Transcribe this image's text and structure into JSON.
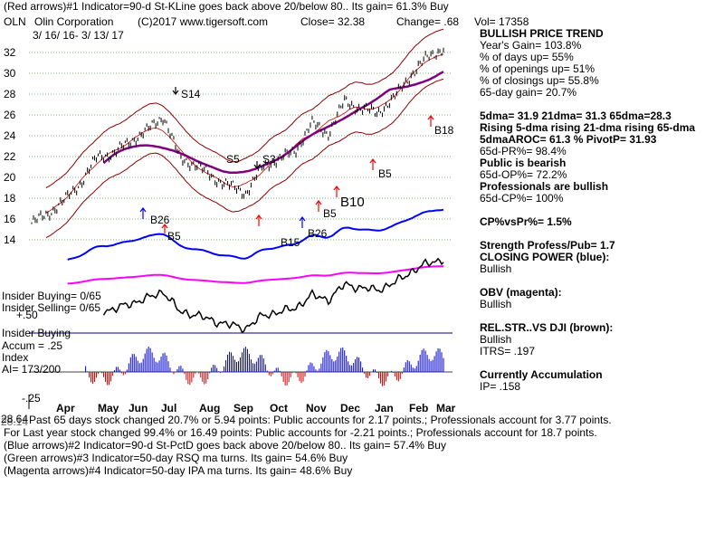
{
  "header": {
    "line1": "(Red arrows)#1 Indicator=90-d St-KLine goes back above 20/below 80..  Its gain= 61.3% Buy",
    "symbol": "OLN",
    "company": "Olin Corporation",
    "copyright": "(C)2017 www.tigersoft.com",
    "close": "Close=  32.38",
    "change": "Change= .68",
    "vol": "Vol= 17358",
    "date_range": "3/ 16/ 16- 3/ 13/ 17"
  },
  "chart_data": {
    "type": "line",
    "ylim": [
      14,
      33
    ],
    "y_ticks": [
      "32",
      "30",
      "28",
      "26",
      "24",
      "22",
      "20",
      "18",
      "16",
      "14"
    ],
    "y_tick_values": [
      32,
      30,
      28,
      26,
      24,
      22,
      20,
      18,
      16,
      14
    ],
    "x_ticks": [
      "Apr",
      "May",
      "Jun",
      "Jul",
      "Aug",
      "Sep",
      "Oct",
      "Nov",
      "Dec",
      "Jan",
      "Feb",
      "Mar"
    ],
    "series": [
      {
        "name": "",
        "values": [
          15.6,
          16.5,
          17.8,
          19.5,
          22.0,
          22.3,
          23.5,
          24.5,
          25.9,
          21.8,
          21.2,
          20.0,
          19.2,
          18.5,
          21.0,
          21.8,
          22.5,
          25.2,
          24.2,
          27.3,
          26.6,
          26.2,
          27.6,
          29.8,
          31.5,
          32.4
        ]
      }
    ],
    "color": "#000000",
    "annotations": [
      "S14",
      "S5",
      "S3",
      "B5",
      "B26",
      "B5",
      "B15",
      "B10",
      "B5",
      "B18",
      "B26"
    ],
    "indicators": {
      "insider_buying_label_1": "Insider Buying= 0/65",
      "insider_selling_label": "Insider Selling= 0/65",
      "plus50": "+.50",
      "insider_buying_label_2": "Insider Buying",
      "accum": "Accum = .25",
      "index": "Index",
      "ai": "AI= 173/200",
      "minus25": "-.25",
      "price_left_1": "28.64",
      "price_left_2": "28.14"
    },
    "colors": {
      "price": "#000000",
      "bands": "#8b0000",
      "ma65": "#800080",
      "closing_power": "#0000ff",
      "obv": "#ff00ff",
      "rel_str": "#000000",
      "accum_bars": "#0000cc",
      "dist_bars": "#cc0000",
      "arrow_red": "#ff0000",
      "arrow_blue": "#0000ff"
    }
  },
  "panel": {
    "title": "BULLISH PRICE TREND",
    "lines": [
      "  Year's Gain= 103.8%",
      "  % of days up= 55%",
      "  % of openings up= 51%",
      "  % of closings up= 55.8%",
      "  65-day gain= 20.7%",
      "",
      "5dma= 31.9 21dma= 31.3 65dma=28.3",
      "Rising 5-dma rising 21-dma rising 65-dma",
      "5dmaAROC= 61.3 %  PivotP= 31.93",
      "  65d-PR%= 98.4%",
      "Public is bearish",
      "  65d-OP%= 72.2%",
      "Professionals are bullish",
      "  65d-CP%= 100%",
      "",
      "CP%vsPr%=  1.5%",
      "",
      "Strength Profess/Pub= 1.7",
      "CLOSING POWER (blue):",
      "Bullish",
      "",
      "OBV (magenta):",
      "Bullish",
      "",
      "REL.STR..VS DJI (brown):",
      "Bullish",
      "ITRS= .197",
      "",
      "Currently Accumulation",
      "  IP=  .158"
    ]
  },
  "footer": {
    "line1": "Past 65 days stock changed  20.7% or  5.94 points:  Public accounts for  2.17 points.;  Professionals account for  3.77 points.",
    "line2": "For Last year stock changed  99.4% or  16.49 points:  Public accounts for -2.21 points.;  Professionals account for  18.7 points.",
    "line3": "(Blue arrows)#2 Indicator=90-d St-PctD goes back above 20/below 80..  Its gain= 57.4% Buy",
    "line4": "(Green arrows)#3 Indicator=50-day RSQ ma turns.  Its gain= 54.6% Buy",
    "line5": "(Magenta arrows)#4 Indicator=50-day IPA ma turns.  Its gain= 48.6% Buy"
  }
}
